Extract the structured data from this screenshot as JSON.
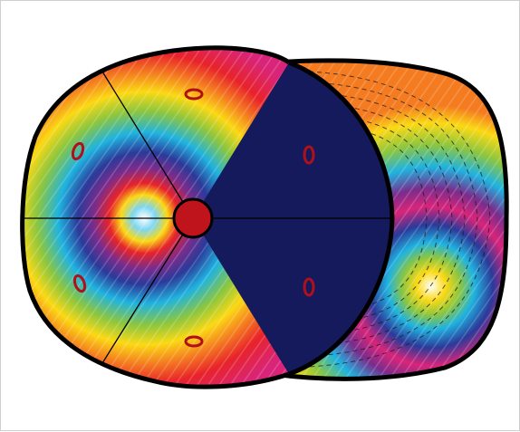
{
  "illustration": {
    "subject": "cap-template-top-view",
    "panel_pattern": "rainbow-tie-dye",
    "colors": {
      "outline": "#000000",
      "front_panel": "#141a5c",
      "button": "#c0141c",
      "eyelet": "#b0101a",
      "tie_dye": [
        "#e8232a",
        "#f47b20",
        "#fbd914",
        "#8cc63f",
        "#1fb3e0",
        "#2b3a9a",
        "#7a2c8c",
        "#d9247a"
      ]
    },
    "crown_panels": 6,
    "eyelets": 6
  }
}
